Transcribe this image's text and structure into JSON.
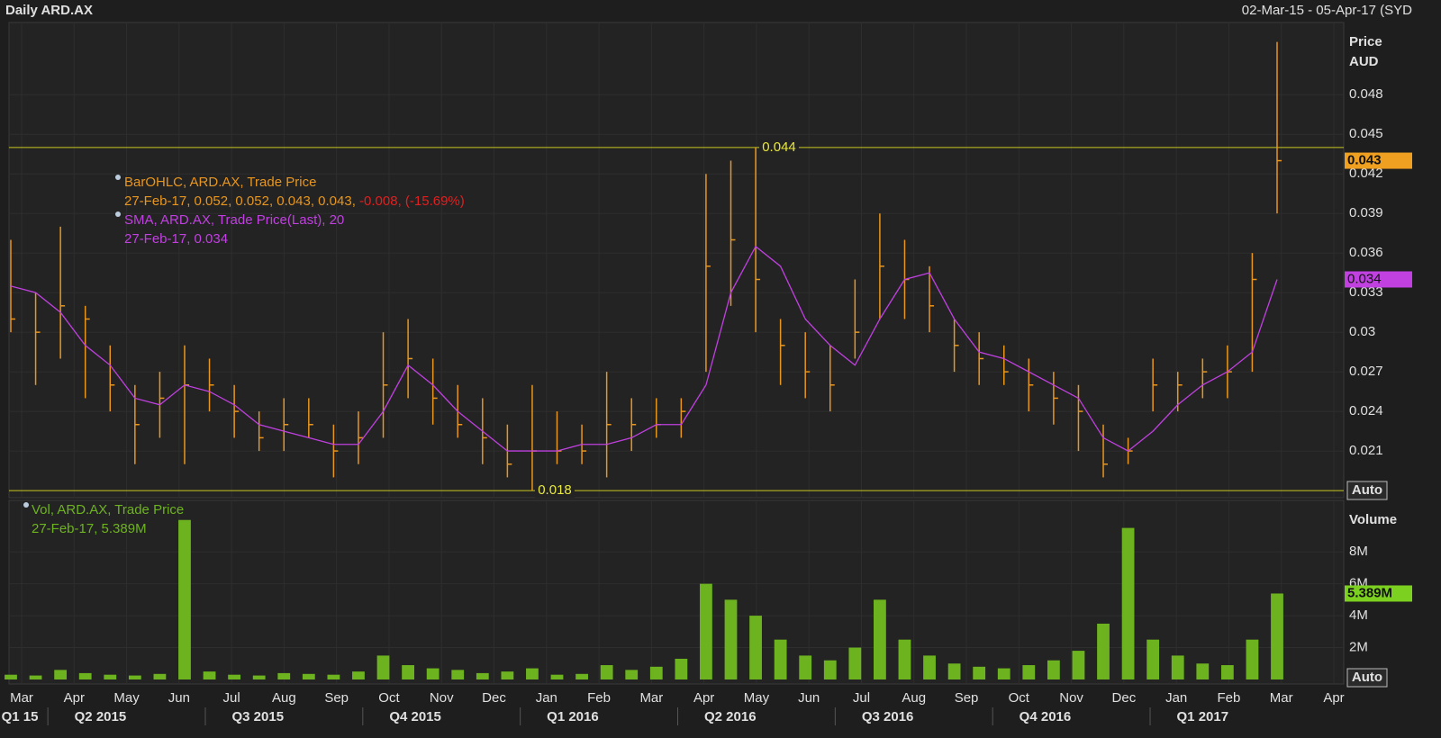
{
  "header": {
    "title": "Daily ARD.AX",
    "range": "02-Mar-15 - 05-Apr-17 (SYD"
  },
  "x_axis": {
    "months": [
      "Mar",
      "Apr",
      "May",
      "Jun",
      "Jul",
      "Aug",
      "Sep",
      "Oct",
      "Nov",
      "Dec",
      "Jan",
      "Feb",
      "Mar",
      "Apr",
      "May",
      "Jun",
      "Jul",
      "Aug",
      "Sep",
      "Oct",
      "Nov",
      "Dec",
      "Jan",
      "Feb",
      "Mar",
      "Apr"
    ],
    "quarters": [
      "Q1 15",
      "Q2 2015",
      "Q3 2015",
      "Q4 2015",
      "Q1 2016",
      "Q2 2016",
      "Q3 2016",
      "Q4 2016",
      "Q1 2017"
    ]
  },
  "chart_data": [
    {
      "type": "ohlc",
      "axis_title": [
        "Price",
        "AUD"
      ],
      "auto": "Auto",
      "legend": {
        "ohlc_values": "27-Feb-17, 0.052, 0.052, 0.043, 0.043, ",
        "ohlc_change": "-0.008, (-15.69%)",
        "sma_values": "27-Feb-17, 0.034"
      },
      "ylim": [
        0.0178,
        0.0532
      ],
      "yticks": [
        0.021,
        0.024,
        0.027,
        0.03,
        0.033,
        0.036,
        0.039,
        0.042,
        0.045,
        0.048
      ],
      "hlines": [
        0.044,
        0.018
      ],
      "series": [
        {
          "name": "BarOHLC, ARD.AX, Trade Price",
          "color": "#e8961e",
          "high": [
            0.037,
            0.033,
            0.038,
            0.032,
            0.029,
            0.026,
            0.027,
            0.029,
            0.028,
            0.026,
            0.024,
            0.025,
            0.025,
            0.023,
            0.024,
            0.03,
            0.031,
            0.028,
            0.026,
            0.025,
            0.023,
            0.026,
            0.024,
            0.023,
            0.027,
            0.025,
            0.025,
            0.025,
            0.042,
            0.043,
            0.044,
            0.031,
            0.03,
            0.029,
            0.034,
            0.039,
            0.037,
            0.035,
            0.031,
            0.03,
            0.029,
            0.028,
            0.027,
            0.026,
            0.023,
            0.022,
            0.028,
            0.027,
            0.028,
            0.029,
            0.036,
            0.052
          ],
          "low": [
            0.03,
            0.026,
            0.028,
            0.025,
            0.024,
            0.02,
            0.022,
            0.02,
            0.024,
            0.022,
            0.021,
            0.021,
            0.022,
            0.019,
            0.02,
            0.022,
            0.025,
            0.023,
            0.022,
            0.02,
            0.019,
            0.018,
            0.02,
            0.02,
            0.019,
            0.021,
            0.022,
            0.022,
            0.027,
            0.032,
            0.03,
            0.026,
            0.025,
            0.024,
            0.028,
            0.031,
            0.031,
            0.03,
            0.027,
            0.026,
            0.026,
            0.024,
            0.023,
            0.021,
            0.019,
            0.02,
            0.024,
            0.024,
            0.025,
            0.025,
            0.027,
            0.039
          ],
          "close": [
            0.031,
            0.03,
            0.032,
            0.031,
            0.026,
            0.023,
            0.025,
            0.026,
            0.026,
            0.024,
            0.022,
            0.023,
            0.023,
            0.021,
            0.022,
            0.026,
            0.028,
            0.025,
            0.023,
            0.022,
            0.02,
            0.021,
            0.021,
            0.021,
            0.023,
            0.023,
            0.023,
            0.024,
            0.035,
            0.037,
            0.034,
            0.029,
            0.027,
            0.026,
            0.03,
            0.035,
            0.034,
            0.032,
            0.029,
            0.028,
            0.027,
            0.026,
            0.025,
            0.024,
            0.02,
            0.021,
            0.026,
            0.026,
            0.027,
            0.027,
            0.034,
            0.043
          ]
        },
        {
          "name": "SMA, ARD.AX, Trade Price(Last),  20",
          "color": "#c040e0",
          "values": [
            0.0335,
            0.033,
            0.0315,
            0.029,
            0.0275,
            0.025,
            0.0245,
            0.026,
            0.0255,
            0.0245,
            0.023,
            0.0225,
            0.022,
            0.0215,
            0.0215,
            0.024,
            0.0275,
            0.026,
            0.024,
            0.0225,
            0.021,
            0.021,
            0.021,
            0.0215,
            0.0215,
            0.022,
            0.023,
            0.023,
            0.026,
            0.033,
            0.0365,
            0.035,
            0.031,
            0.029,
            0.0275,
            0.031,
            0.034,
            0.0345,
            0.031,
            0.0285,
            0.028,
            0.027,
            0.026,
            0.025,
            0.022,
            0.021,
            0.0225,
            0.0245,
            0.026,
            0.027,
            0.0285,
            0.034
          ]
        }
      ]
    },
    {
      "type": "bar",
      "axis_title": "Volume",
      "auto": "Auto",
      "ylim": [
        0,
        11000000
      ],
      "yticks": [
        {
          "value": 2000000,
          "label": "2M"
        },
        {
          "value": 4000000,
          "label": "4M"
        },
        {
          "value": 6000000,
          "label": "6M"
        },
        {
          "value": 8000000,
          "label": "8M"
        }
      ],
      "legend": {
        "values": "27-Feb-17, 5.389M"
      },
      "series": [
        {
          "name": "Vol, ARD.AX, Trade Price",
          "color": "#6db31f",
          "last_value_label": "5.389M",
          "values": [
            300000,
            250000,
            600000,
            400000,
            300000,
            250000,
            350000,
            10000000,
            500000,
            300000,
            250000,
            400000,
            350000,
            300000,
            500000,
            1500000,
            900000,
            700000,
            600000,
            400000,
            500000,
            700000,
            300000,
            350000,
            900000,
            600000,
            800000,
            1300000,
            6000000,
            5000000,
            4000000,
            2500000,
            1500000,
            1200000,
            2000000,
            5000000,
            2500000,
            1500000,
            1000000,
            800000,
            700000,
            900000,
            1200000,
            1800000,
            3500000,
            9500000,
            2500000,
            1500000,
            1000000,
            900000,
            2500000,
            5389000
          ]
        }
      ]
    }
  ]
}
